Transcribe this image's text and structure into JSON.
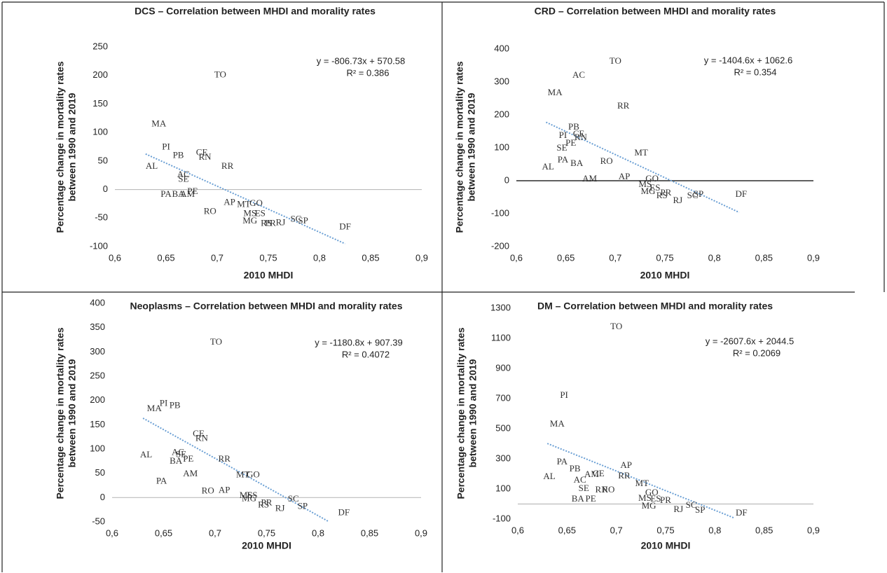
{
  "chart_data": [
    {
      "type": "scatter",
      "title": "DCS – Correlation between MHDI and morality rates",
      "xlabel": "2010 MHDI",
      "ylabel": [
        "Percentage change in mortality rates",
        "between 1990 and 2019"
      ],
      "labels": [
        "TO",
        "MA",
        "PI",
        "PB",
        "CE",
        "RN",
        "AL",
        "RR",
        "AC",
        "SE",
        "PA",
        "BA",
        "AM",
        "PE",
        "AP",
        "RO",
        "MT",
        "GO",
        "MS",
        "ES",
        "MG",
        "RS",
        "PR",
        "RJ",
        "SC",
        "SP",
        "DF"
      ],
      "x": [
        0.703,
        0.643,
        0.65,
        0.662,
        0.685,
        0.688,
        0.636,
        0.71,
        0.667,
        0.667,
        0.65,
        0.662,
        0.671,
        0.676,
        0.712,
        0.693,
        0.726,
        0.738,
        0.732,
        0.742,
        0.732,
        0.748,
        0.752,
        0.762,
        0.777,
        0.784,
        0.825
      ],
      "y": [
        200,
        114,
        74,
        59,
        64,
        56,
        40,
        40,
        25,
        17,
        -9,
        -9,
        -9,
        -4,
        -23,
        -39,
        -27,
        -25,
        -43,
        -43,
        -56,
        -60,
        -60,
        -59,
        -53,
        -56,
        -66
      ],
      "xlim": [
        0.6,
        0.9
      ],
      "ylim": [
        -100,
        250
      ],
      "xticks": [
        {
          "value": 0.6,
          "label": "0,6"
        },
        {
          "value": 0.65,
          "label": "0,65"
        },
        {
          "value": 0.7,
          "label": "0,7"
        },
        {
          "value": 0.75,
          "label": "0,75"
        },
        {
          "value": 0.8,
          "label": "0,8"
        },
        {
          "value": 0.85,
          "label": "0,85"
        },
        {
          "value": 0.9,
          "label": "0,9"
        }
      ],
      "yticks": [
        -100,
        -50,
        0,
        50,
        100,
        150,
        200,
        250
      ],
      "trendline": {
        "slope": -806.73,
        "intercept": 570.58,
        "xrange": [
          0.63,
          0.825
        ],
        "equation": "y = -806.73x + 570.58",
        "r_squared": "R² = 0.386",
        "color": "#6a9fd4"
      },
      "zero_line_color": "#bbbbbb"
    },
    {
      "type": "scatter",
      "title": "CRD – Correlation between MHDI and morality rates",
      "xlabel": "2010 MHDI",
      "ylabel": [
        "Percentage change in mortality rates",
        "between 1990 and 2019"
      ],
      "labels": [
        "TO",
        "AC",
        "MA",
        "RR",
        "PB",
        "PI",
        "CE",
        "RN",
        "PE",
        "SE",
        "MT",
        "PA",
        "BA",
        "RO",
        "AL",
        "AM",
        "AP",
        "GO",
        "MS",
        "ES",
        "MG",
        "PR",
        "RS",
        "RJ",
        "SC",
        "SP",
        "DF"
      ],
      "x": [
        0.7,
        0.663,
        0.639,
        0.708,
        0.658,
        0.647,
        0.663,
        0.665,
        0.655,
        0.646,
        0.726,
        0.647,
        0.661,
        0.691,
        0.632,
        0.674,
        0.709,
        0.737,
        0.73,
        0.74,
        0.733,
        0.751,
        0.747,
        0.763,
        0.778,
        0.784,
        0.827
      ],
      "y": [
        362,
        319,
        266,
        226,
        162,
        136,
        140,
        130,
        113,
        98,
        83,
        62,
        51,
        57,
        40,
        4,
        11,
        4,
        -13,
        -23,
        -34,
        -38,
        -47,
        -62,
        -47,
        -43,
        -43
      ],
      "xlim": [
        0.6,
        0.9
      ],
      "ylim": [
        -200,
        400
      ],
      "xticks": [
        {
          "value": 0.6,
          "label": "0,6"
        },
        {
          "value": 0.65,
          "label": "0,65"
        },
        {
          "value": 0.7,
          "label": "0,7"
        },
        {
          "value": 0.75,
          "label": "0,75"
        },
        {
          "value": 0.8,
          "label": "0,8"
        },
        {
          "value": 0.85,
          "label": "0,85"
        },
        {
          "value": 0.9,
          "label": "0,9"
        }
      ],
      "yticks": [
        -200,
        -100,
        0,
        100,
        200,
        300,
        400
      ],
      "trendline": {
        "slope": -1404.6,
        "intercept": 1062.6,
        "xrange": [
          0.63,
          0.825
        ],
        "equation": "y = -1404.6x + 1062.6",
        "r_squared": "R² = 0.354",
        "color": "#6a9fd4"
      },
      "zero_line_color": "#000000"
    },
    {
      "type": "scatter",
      "title": "Neoplasms – Correlation between MHDI and morality rates",
      "xlabel": "2010 MHDI",
      "ylabel": [
        "Percentage change in mortality rates",
        "between 1990 and 2019"
      ],
      "labels": [
        "TO",
        "MA",
        "PI",
        "PB",
        "CE",
        "RN",
        "AL",
        "AC",
        "SE",
        "BA",
        "PE",
        "RR",
        "AM",
        "MT",
        "GO",
        "PA",
        "RO",
        "AP",
        "MS",
        "ES",
        "MG",
        "PR",
        "RS",
        "RJ",
        "SC",
        "SP",
        "DF"
      ],
      "x": [
        0.701,
        0.641,
        0.65,
        0.661,
        0.684,
        0.687,
        0.633,
        0.664,
        0.667,
        0.662,
        0.674,
        0.709,
        0.676,
        0.727,
        0.737,
        0.648,
        0.693,
        0.709,
        0.73,
        0.736,
        0.733,
        0.75,
        0.747,
        0.763,
        0.776,
        0.785,
        0.825
      ],
      "y": [
        319,
        182,
        193,
        189,
        130,
        121,
        87,
        92,
        88,
        74,
        78,
        78,
        48,
        46,
        46,
        33,
        13,
        14,
        3,
        3,
        -3,
        -12,
        -16,
        -23,
        -4,
        -19,
        -32
      ],
      "xlim": [
        0.6,
        0.9
      ],
      "ylim": [
        -50,
        400
      ],
      "xticks": [
        {
          "value": 0.6,
          "label": "0,6"
        },
        {
          "value": 0.65,
          "label": "0,65"
        },
        {
          "value": 0.7,
          "label": "0,7"
        },
        {
          "value": 0.75,
          "label": "0,75"
        },
        {
          "value": 0.8,
          "label": "0,8"
        },
        {
          "value": 0.85,
          "label": "0,85"
        },
        {
          "value": 0.9,
          "label": "0,9"
        }
      ],
      "yticks": [
        -50,
        0,
        50,
        100,
        150,
        200,
        250,
        300,
        350,
        400
      ],
      "trendline": {
        "slope": -1180.8,
        "intercept": 907.39,
        "xrange": [
          0.63,
          0.81
        ],
        "equation": "y = -1180.8x + 907.39",
        "r_squared": "R² = 0.4072",
        "color": "#6a9fd4"
      },
      "zero_line_color": "#bbbbbb"
    },
    {
      "type": "scatter",
      "title": "DM – Correlation between MHDI and morality rates",
      "xlabel": "2010 MHDI",
      "ylabel": [
        "Percentage change in mortality rates",
        "between 1990 and 2019"
      ],
      "labels": [
        "TO",
        "PI",
        "MA",
        "PA",
        "PB",
        "AP",
        "AL",
        "AM",
        "CE",
        "RR",
        "AC",
        "MT",
        "SE",
        "RN",
        "RO",
        "GO",
        "MS",
        "ES",
        "PR",
        "MG",
        "BA",
        "PE",
        "RJ",
        "SC",
        "SP",
        "DF"
      ],
      "x": [
        0.7,
        0.647,
        0.64,
        0.645,
        0.658,
        0.71,
        0.632,
        0.675,
        0.682,
        0.708,
        0.663,
        0.726,
        0.667,
        0.685,
        0.692,
        0.736,
        0.729,
        0.74,
        0.75,
        0.733,
        0.661,
        0.674,
        0.763,
        0.776,
        0.785,
        0.827
      ],
      "y": [
        1174,
        719,
        528,
        277,
        230,
        253,
        179,
        193,
        198,
        184,
        156,
        133,
        100,
        91,
        91,
        72,
        35,
        30,
        21,
        -16,
        30,
        30,
        -40,
        -12,
        -44,
        -63
      ],
      "xlim": [
        0.6,
        0.9
      ],
      "ylim": [
        -100,
        1300
      ],
      "xticks": [
        {
          "value": 0.6,
          "label": "0,6"
        },
        {
          "value": 0.65,
          "label": "0,65"
        },
        {
          "value": 0.7,
          "label": "0,7"
        },
        {
          "value": 0.75,
          "label": "0,75"
        },
        {
          "value": 0.8,
          "label": "0,8"
        },
        {
          "value": 0.85,
          "label": "0,85"
        },
        {
          "value": 0.9,
          "label": "0,9"
        }
      ],
      "yticks": [
        -100,
        100,
        300,
        500,
        700,
        900,
        1100,
        1300
      ],
      "trendline": {
        "slope": -2607.6,
        "intercept": 2044.5,
        "xrange": [
          0.63,
          0.82
        ],
        "equation": "y = -2607.6x + 2044.5",
        "r_squared": "R² = 0.2069",
        "color": "#6a9fd4"
      },
      "zero_line_color": "#bbbbbb"
    }
  ]
}
